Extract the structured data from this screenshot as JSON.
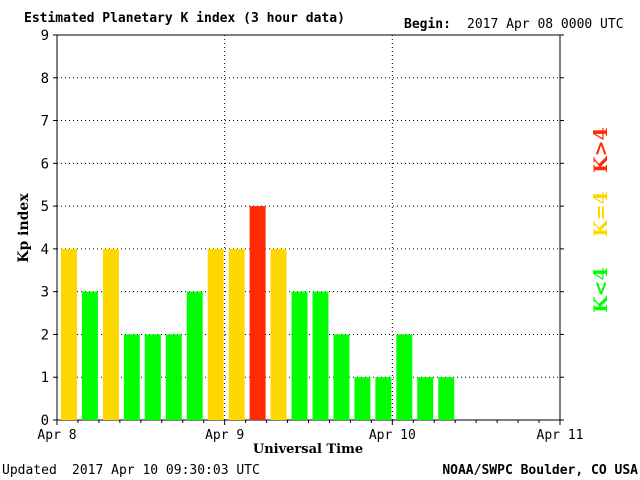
{
  "header": {
    "title": "Estimated Planetary K index (3 hour data)",
    "begin_label": "Begin:",
    "begin_value": "2017 Apr 08 0000 UTC"
  },
  "footer": {
    "updated_label": "Updated",
    "updated_value": "2017 Apr 10 09:30:03 UTC",
    "source": "NOAA/SWPC Boulder, CO USA"
  },
  "legend": {
    "low": {
      "label": "K<4",
      "color": "#00ff00"
    },
    "mid": {
      "label": "K=4",
      "color": "#ffd700"
    },
    "high": {
      "label": "K>4",
      "color": "#ff2a00"
    }
  },
  "chart_data": {
    "type": "bar",
    "xlabel": "Universal Time",
    "ylabel": "Kp index",
    "ylim": [
      0,
      9
    ],
    "yticks": [
      0,
      1,
      2,
      3,
      4,
      5,
      6,
      7,
      8,
      9
    ],
    "xticks": [
      "Apr 8",
      "Apr 9",
      "Apr 10",
      "Apr 11"
    ],
    "slots_per_day": 8,
    "grid": true,
    "values": [
      4,
      3,
      4,
      2,
      2,
      2,
      3,
      4,
      4,
      5,
      4,
      3,
      3,
      2,
      1,
      1,
      2,
      1,
      1
    ]
  }
}
